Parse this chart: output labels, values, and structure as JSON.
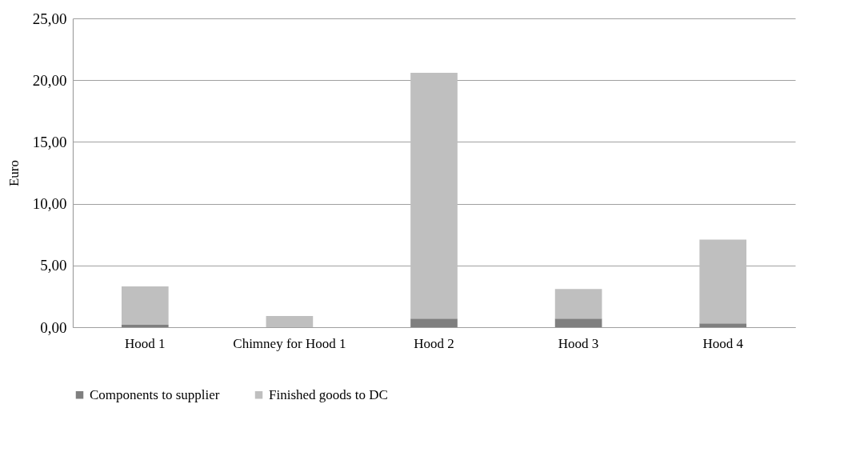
{
  "chart_data": {
    "type": "bar",
    "stacked": true,
    "ylabel": "Euro",
    "categories": [
      "Hood 1",
      "Chimney for Hood 1",
      "Hood 2",
      "Hood 3",
      "Hood 4"
    ],
    "series": [
      {
        "name": "Components to supplier",
        "color": "#7f7f7f",
        "values": [
          0.2,
          0,
          0.7,
          0.7,
          0.3
        ]
      },
      {
        "name": "Finished goods to DC",
        "color": "#bfbfbf",
        "values": [
          3.1,
          0.9,
          19.9,
          2.4,
          6.8
        ]
      }
    ],
    "ylim": [
      0,
      25
    ],
    "yticks": [
      {
        "value": 0,
        "label": "0,00"
      },
      {
        "value": 5,
        "label": "5,00"
      },
      {
        "value": 10,
        "label": "10,00"
      },
      {
        "value": 15,
        "label": "15,00"
      },
      {
        "value": 20,
        "label": "20,00"
      },
      {
        "value": 25,
        "label": "25,00"
      }
    ],
    "grid": "y",
    "legend": "bottom"
  }
}
